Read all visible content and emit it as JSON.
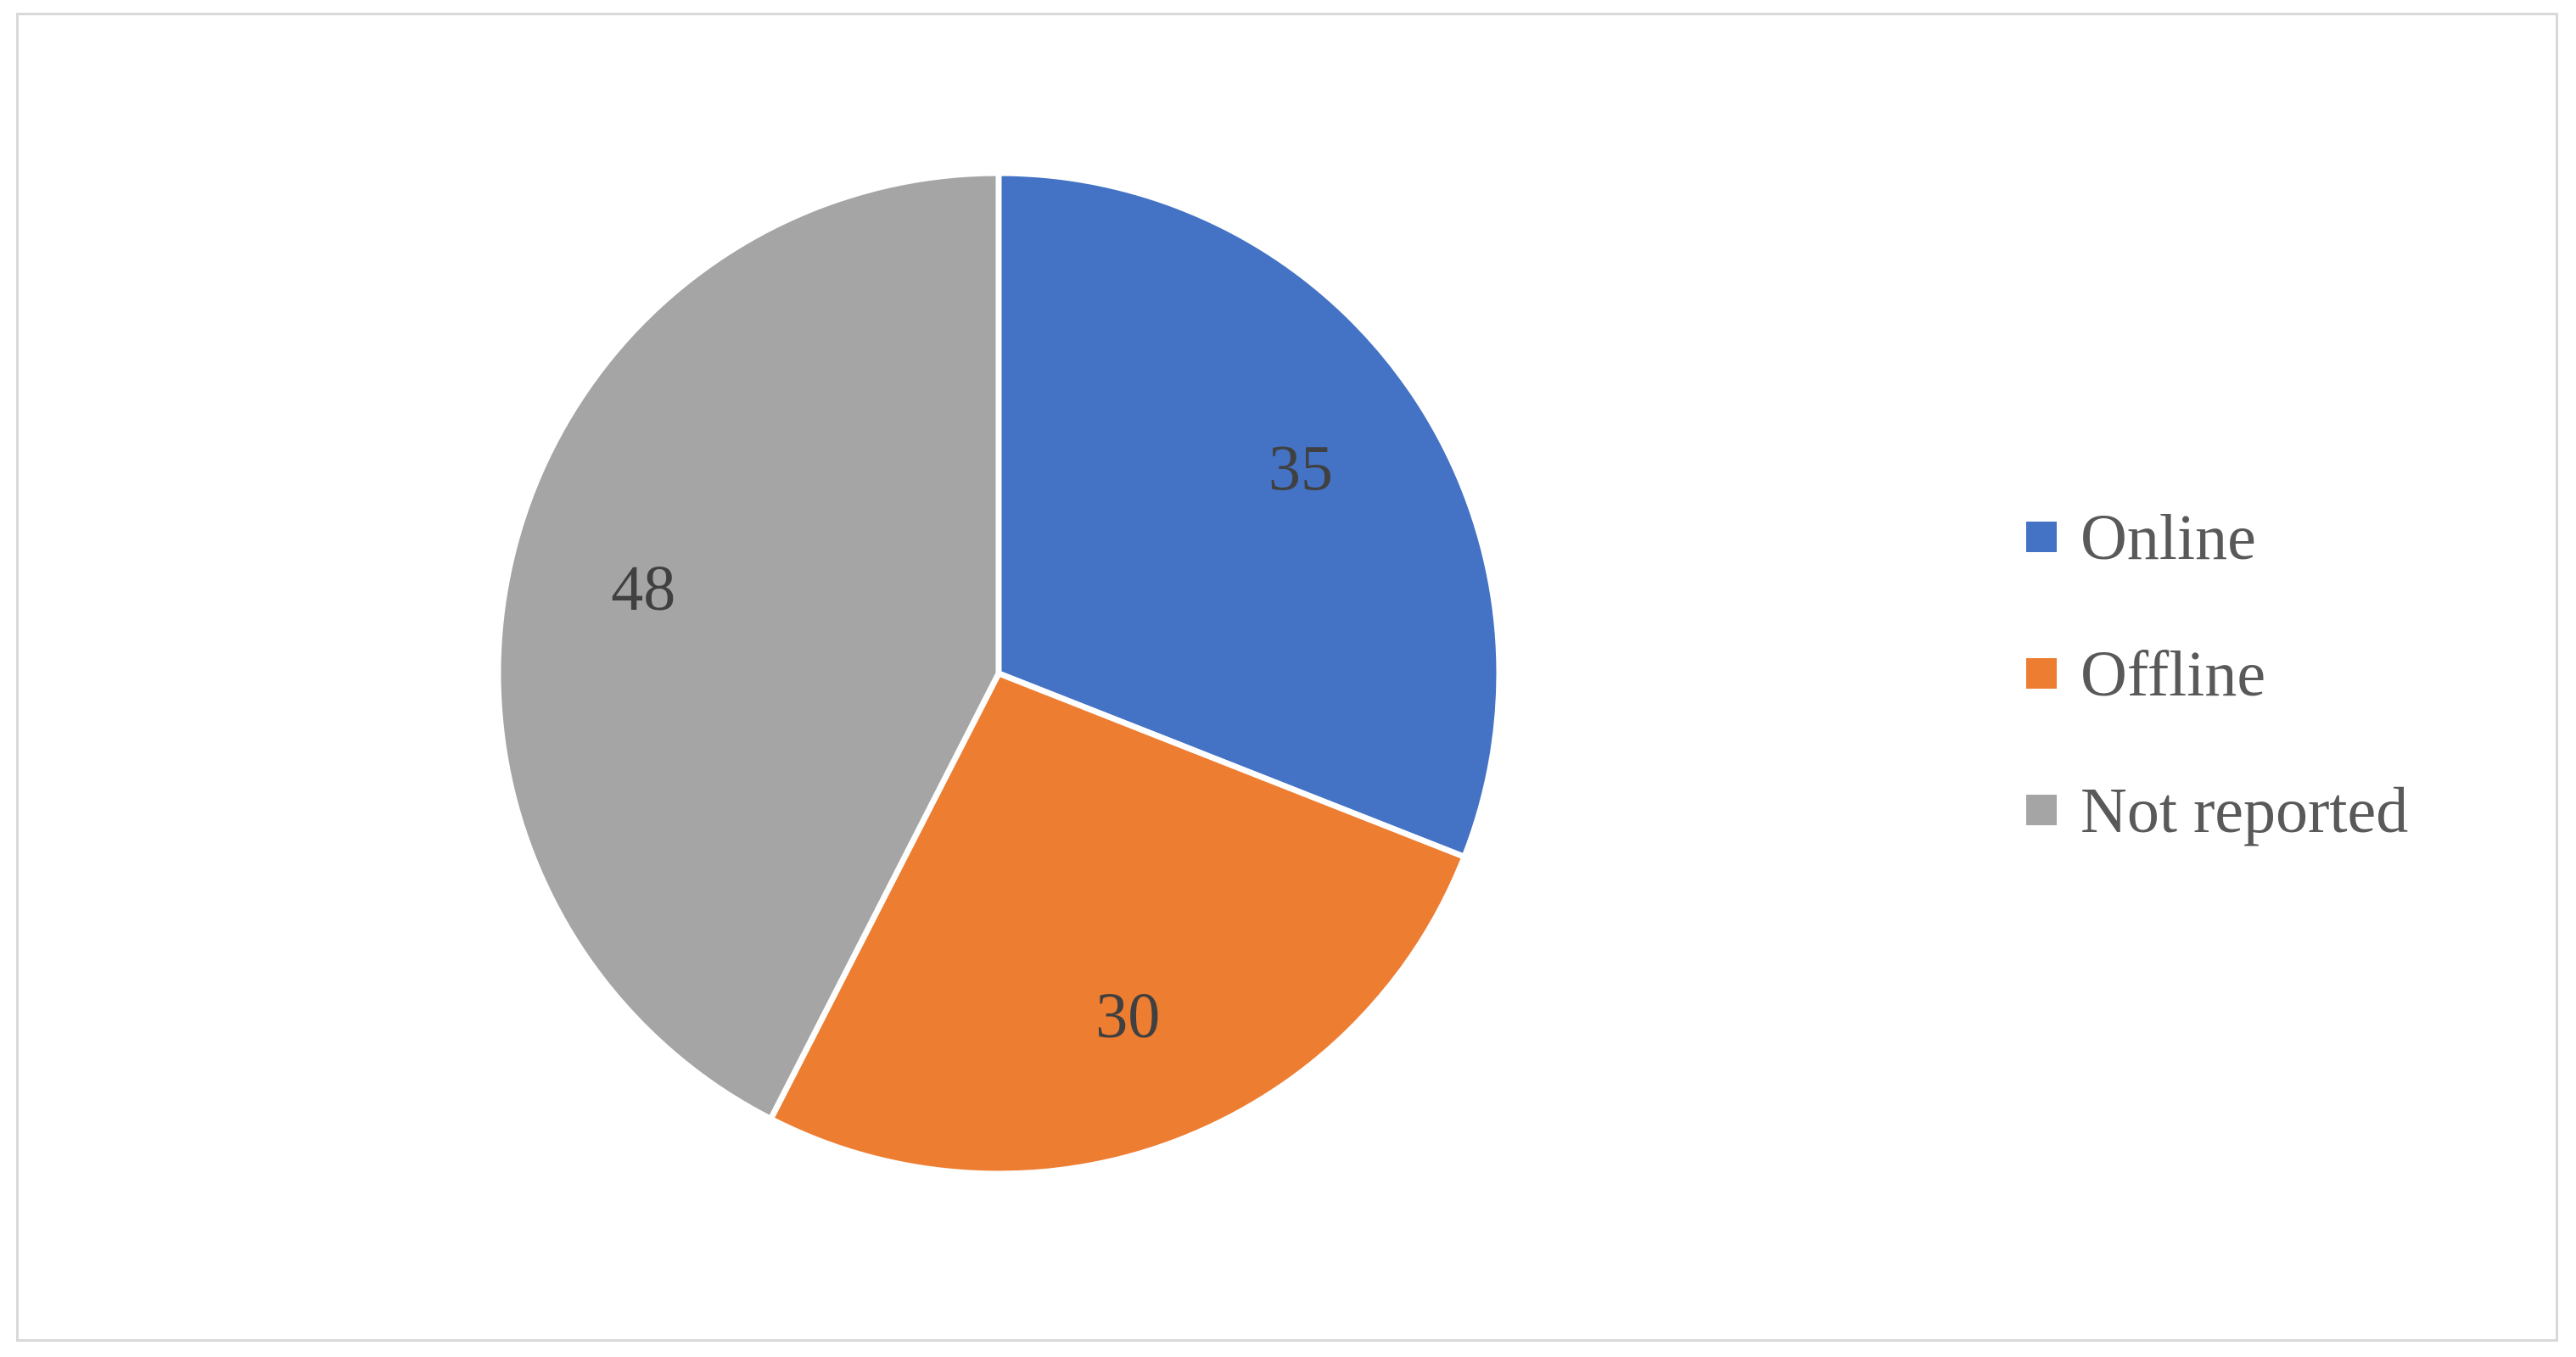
{
  "chart_data": {
    "type": "pie",
    "categories": [
      "Online",
      "Offline",
      "Not reported"
    ],
    "values": [
      35,
      30,
      48
    ],
    "colors": [
      "#4472c4",
      "#ed7d31",
      "#a5a5a5"
    ],
    "title": "",
    "data_labels": [
      "35",
      "30",
      "48"
    ],
    "legend": {
      "position": "right",
      "entries": [
        "Online",
        "Offline",
        "Not reported"
      ]
    },
    "start_angle": "top, clockwise"
  }
}
